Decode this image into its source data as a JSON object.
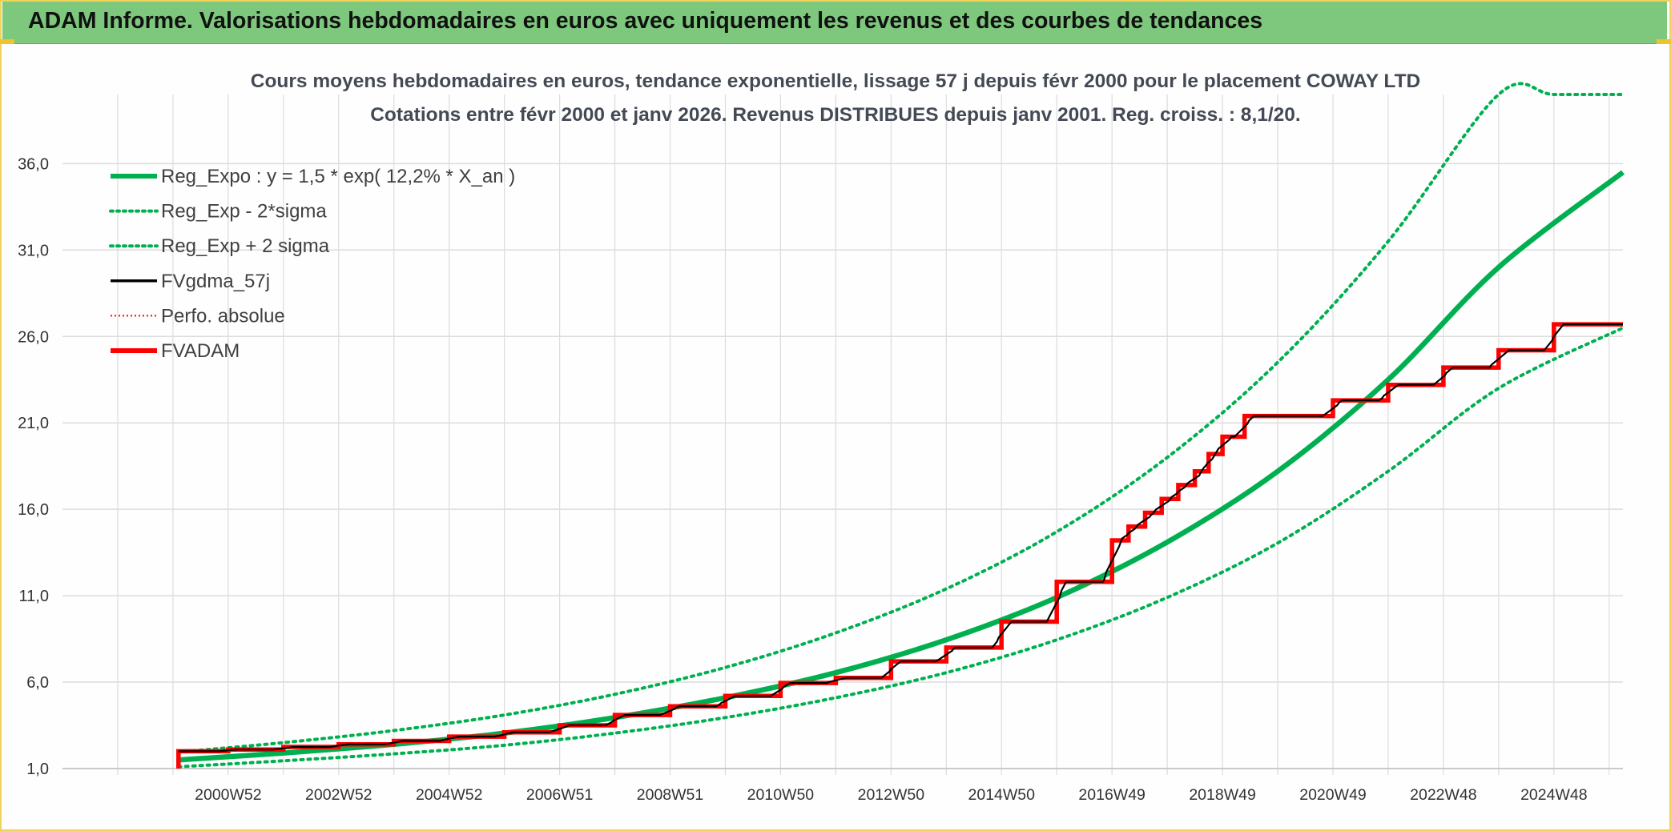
{
  "header": {
    "title": "ADAM Informe. Valorisations hebdomadaires en euros avec uniquement les revenus et des courbes de tendances"
  },
  "colors": {
    "header_bg": "#7ec87e",
    "frame": "#f2d35a",
    "trend": "#00b050",
    "fvgdma": "#000000",
    "fvadam": "#ff0000",
    "grid": "#dcdcdc"
  },
  "chart_data": {
    "type": "line",
    "title_line1": "Cours moyens hebdomadaires en euros, tendance exponentielle, lissage 57 j depuis févr 2000 pour le placement COWAY LTD",
    "title_line2": "Cotations entre févr 2000 et janv 2026. Revenus DISTRIBUES depuis janv 2001. Reg. croiss. : 8,1/20.",
    "ylim": [
      1.0,
      40.0
    ],
    "y_ticks": [
      "1,0",
      "6,0",
      "11,0",
      "16,0",
      "21,0",
      "26,0",
      "31,0",
      "36,0"
    ],
    "y_tick_values": [
      1,
      6,
      11,
      16,
      21,
      26,
      31,
      36
    ],
    "xlim": [
      1998.0,
      2026.25
    ],
    "x_ticks": [
      "2000W52",
      "2002W52",
      "2004W52",
      "2006W51",
      "2008W51",
      "2010W50",
      "2012W50",
      "2014W50",
      "2016W49",
      "2018W49",
      "2020W49",
      "2022W48",
      "2024W48"
    ],
    "x_tick_values": [
      2001.0,
      2003.0,
      2005.0,
      2007.0,
      2009.0,
      2011.0,
      2013.0,
      2015.0,
      2017.0,
      2019.0,
      2021.0,
      2023.0,
      2025.0
    ],
    "legend": [
      {
        "label": "Reg_Expo : y = 1,5 * exp( 12,2% *  X_an )",
        "style": "solid-thick",
        "color": "#00b050"
      },
      {
        "label": "Reg_Exp - 2*sigma",
        "style": "dotted",
        "color": "#00b050"
      },
      {
        "label": "Reg_Exp + 2 sigma",
        "style": "dotted",
        "color": "#00b050"
      },
      {
        "label": "FVgdma_57j",
        "style": "solid",
        "color": "#000000"
      },
      {
        "label": "Perfo. absolue",
        "style": "dotted-thin",
        "color": "#ff0000"
      },
      {
        "label": "FVADAM",
        "style": "solid-thick",
        "color": "#ff0000"
      }
    ],
    "series": [
      {
        "name": "Reg_Expo",
        "x": [
          2000.1,
          2002.0,
          2004.0,
          2006.0,
          2008.0,
          2010.0,
          2012.0,
          2014.0,
          2016.0,
          2018.0,
          2020.0,
          2022.0,
          2024.0,
          2026.25
        ],
        "values": [
          1.5,
          1.9,
          2.4,
          3.05,
          3.95,
          5.1,
          6.55,
          8.45,
          10.9,
          14.1,
          18.2,
          23.5,
          30.0,
          35.5
        ]
      },
      {
        "name": "Reg_Exp - 2*sigma",
        "x": [
          2000.1,
          2002.0,
          2004.0,
          2006.0,
          2008.0,
          2010.0,
          2012.0,
          2014.0,
          2016.0,
          2018.0,
          2020.0,
          2022.0,
          2024.0,
          2026.25
        ],
        "values": [
          1.1,
          1.45,
          1.85,
          2.35,
          3.05,
          3.95,
          5.1,
          6.55,
          8.45,
          10.9,
          14.05,
          18.2,
          23.0,
          26.5
        ]
      },
      {
        "name": "Reg_Exp + 2 sigma",
        "x": [
          2000.1,
          2002.0,
          2004.0,
          2006.0,
          2008.0,
          2010.0,
          2012.0,
          2014.0,
          2016.0,
          2018.0,
          2020.0,
          2022.0,
          2024.0,
          2025.0,
          2026.25
        ],
        "values": [
          1.95,
          2.5,
          3.2,
          4.1,
          5.3,
          6.85,
          8.85,
          11.4,
          14.7,
          19.0,
          24.5,
          31.5,
          40.0,
          40.0,
          40.0
        ]
      },
      {
        "name": "FVADAM",
        "steps": [
          {
            "x": 2000.1,
            "y": 1.0
          },
          {
            "x": 2000.1,
            "y": 2.0
          },
          {
            "x": 2001.0,
            "y": 2.1
          },
          {
            "x": 2002.0,
            "y": 2.25
          },
          {
            "x": 2003.0,
            "y": 2.4
          },
          {
            "x": 2004.0,
            "y": 2.6
          },
          {
            "x": 2005.0,
            "y": 2.85
          },
          {
            "x": 2006.0,
            "y": 3.1
          },
          {
            "x": 2007.0,
            "y": 3.5
          },
          {
            "x": 2008.0,
            "y": 4.1
          },
          {
            "x": 2009.0,
            "y": 4.6
          },
          {
            "x": 2010.0,
            "y": 5.2
          },
          {
            "x": 2011.0,
            "y": 5.95
          },
          {
            "x": 2012.0,
            "y": 6.25
          },
          {
            "x": 2013.0,
            "y": 7.2
          },
          {
            "x": 2014.0,
            "y": 8.0
          },
          {
            "x": 2015.0,
            "y": 9.5
          },
          {
            "x": 2016.0,
            "y": 11.8
          },
          {
            "x": 2017.0,
            "y": 14.2
          },
          {
            "x": 2017.3,
            "y": 15.0
          },
          {
            "x": 2017.6,
            "y": 15.8
          },
          {
            "x": 2017.9,
            "y": 16.6
          },
          {
            "x": 2018.2,
            "y": 17.4
          },
          {
            "x": 2018.5,
            "y": 18.2
          },
          {
            "x": 2018.75,
            "y": 19.2
          },
          {
            "x": 2019.0,
            "y": 20.2
          },
          {
            "x": 2019.4,
            "y": 21.4
          },
          {
            "x": 2020.0,
            "y": 21.4
          },
          {
            "x": 2021.0,
            "y": 22.3
          },
          {
            "x": 2022.0,
            "y": 23.2
          },
          {
            "x": 2023.0,
            "y": 24.2
          },
          {
            "x": 2024.0,
            "y": 25.2
          },
          {
            "x": 2025.0,
            "y": 26.7
          },
          {
            "x": 2026.25,
            "y": 26.7
          }
        ]
      },
      {
        "name": "FVgdma_57j",
        "smoothing_years": 0.16,
        "follows": "FVADAM"
      }
    ]
  }
}
